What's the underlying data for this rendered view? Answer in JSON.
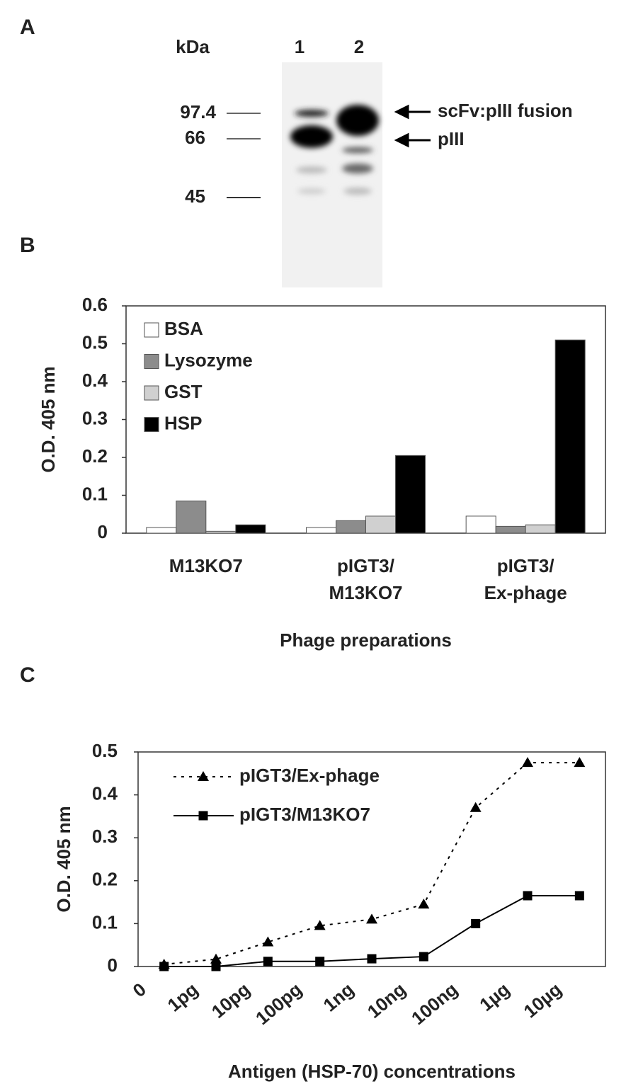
{
  "panel_a": {
    "label": "A",
    "unit": "kDa",
    "lanes": [
      "1",
      "2"
    ],
    "markers": [
      "97.4",
      "66",
      "45"
    ],
    "arrows": [
      "scFv:pIII fusion",
      "pIII"
    ]
  },
  "chart_data": [
    {
      "type": "bar",
      "label": "B",
      "ylabel": "O.D. 405 nm",
      "xlabel": "Phage preparations",
      "categories": [
        [
          "M13KO7"
        ],
        [
          "pIGT3/",
          "M13KO7"
        ],
        [
          "pIGT3/",
          "Ex-phage"
        ]
      ],
      "series": [
        {
          "name": "BSA",
          "color": "#ffffff",
          "values": [
            0.015,
            0.015,
            0.045
          ]
        },
        {
          "name": "Lysozyme",
          "color": "#8c8c8c",
          "values": [
            0.085,
            0.033,
            0.018
          ]
        },
        {
          "name": "GST",
          "color": "#d0d0d0",
          "values": [
            0.005,
            0.045,
            0.022
          ]
        },
        {
          "name": "HSP",
          "color": "#000000",
          "values": [
            0.022,
            0.205,
            0.51
          ]
        }
      ],
      "ylim": [
        0,
        0.6
      ],
      "yticks": [
        0,
        0.1,
        0.2,
        0.3,
        0.4,
        0.5,
        0.6
      ],
      "legend": "upper left"
    },
    {
      "type": "line",
      "label": "C",
      "ylabel": "O.D. 405 nm",
      "xlabel": "Antigen (HSP-70) concentrations",
      "categories": [
        "0",
        "1pg",
        "10pg",
        "100pg",
        "1ng",
        "10ng",
        "100ng",
        "1µg",
        "10µg"
      ],
      "series": [
        {
          "name": "pIGT3/Ex-phage",
          "color": "#000000",
          "line_style": "dotted",
          "marker": "triangle",
          "values": [
            0.005,
            0.017,
            0.057,
            0.095,
            0.11,
            0.145,
            0.37,
            0.475,
            0.475
          ]
        },
        {
          "name": "pIGT3/M13KO7",
          "color": "#000000",
          "line_style": "solid",
          "marker": "square",
          "values": [
            0,
            0,
            0.012,
            0.012,
            0.018,
            0.023,
            0.1,
            0.165,
            0.165
          ]
        }
      ],
      "ylim": [
        0,
        0.5
      ],
      "yticks": [
        0,
        0.1,
        0.2,
        0.3,
        0.4,
        0.5
      ],
      "legend": "upper left"
    }
  ]
}
